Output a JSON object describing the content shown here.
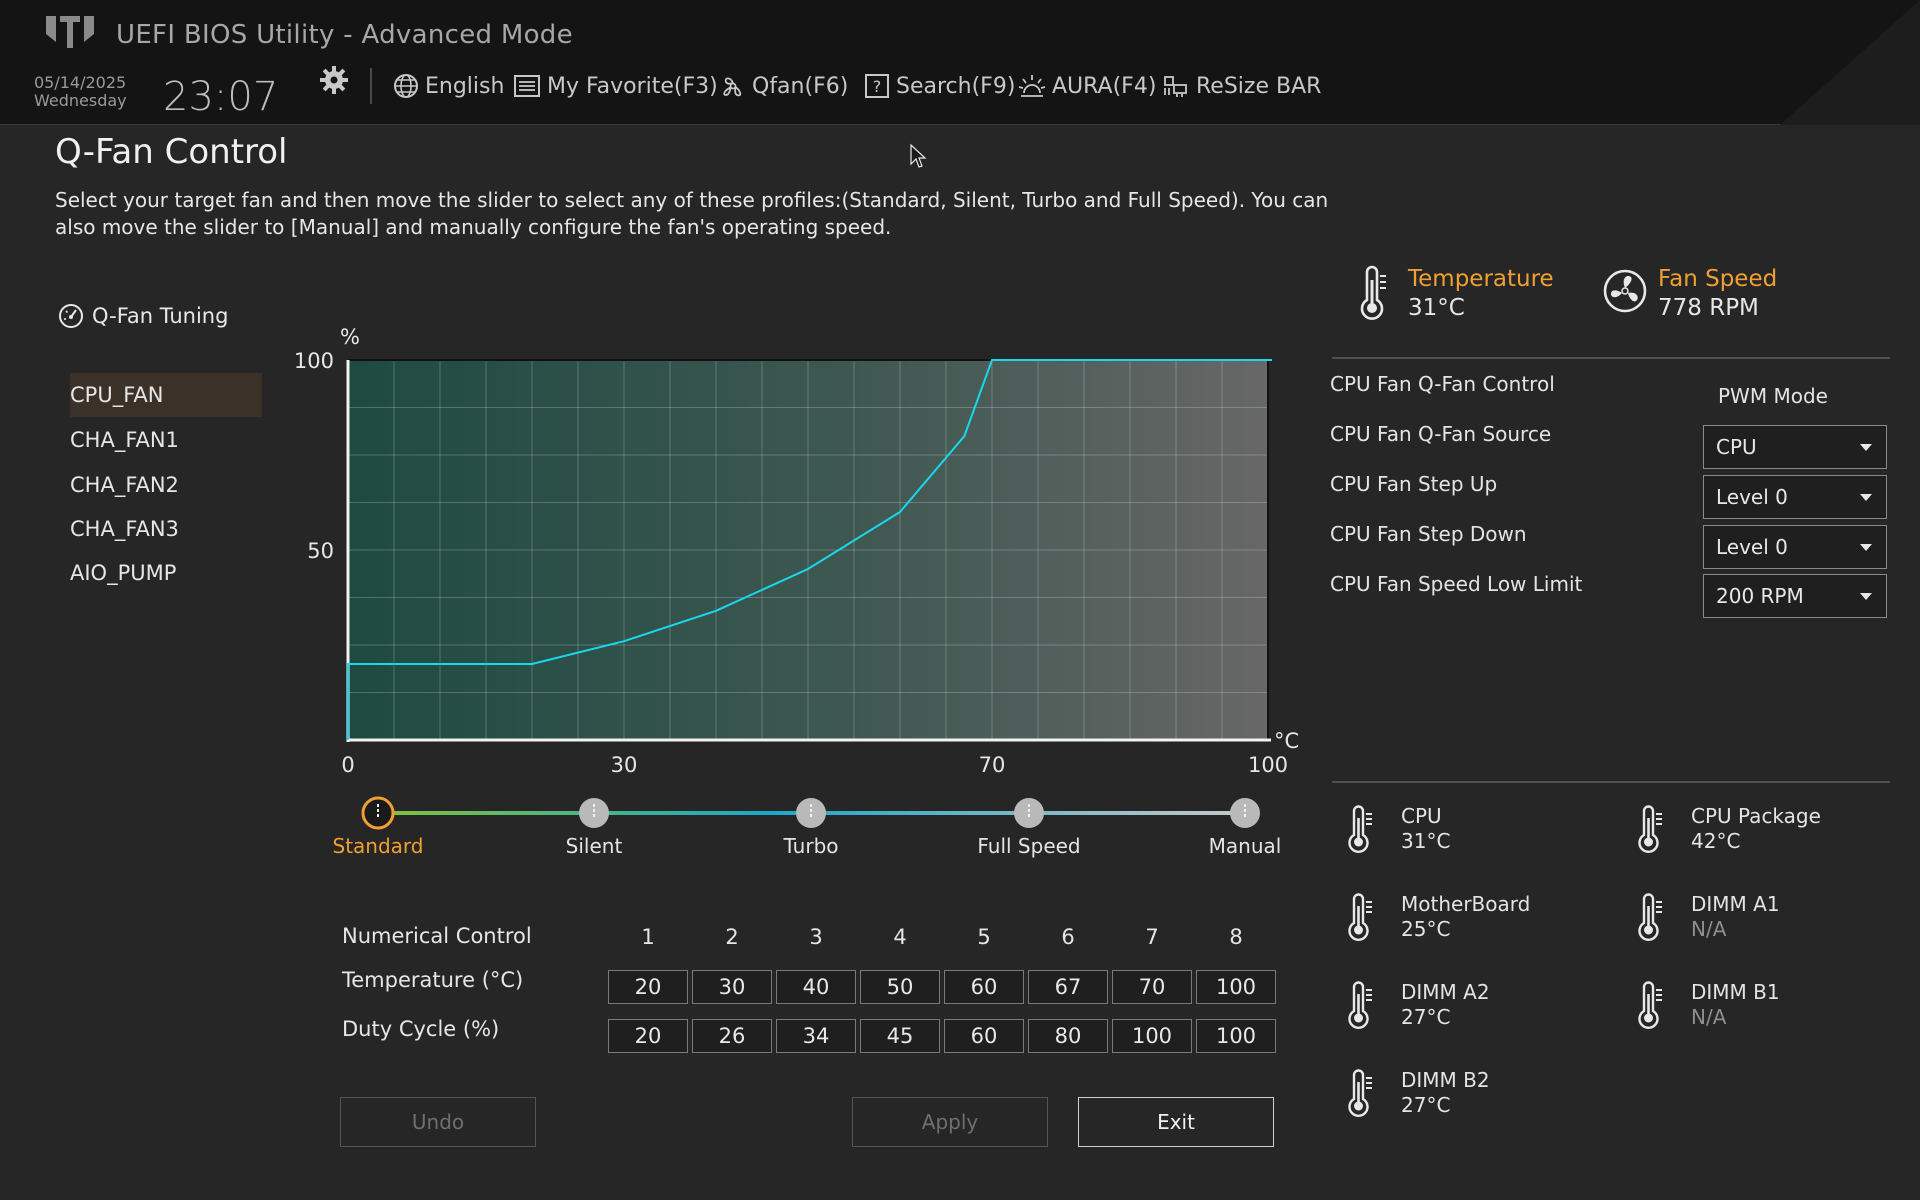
{
  "header": {
    "title": "UEFI BIOS Utility - Advanced Mode",
    "date": "05/14/2025",
    "weekday": "Wednesday",
    "time": "23:07",
    "nav": [
      {
        "label": "English",
        "icon": "globe-icon"
      },
      {
        "label": "My Favorite(F3)",
        "icon": "favorite-list-icon"
      },
      {
        "label": "Qfan(F6)",
        "icon": "fan-icon"
      },
      {
        "label": "Search(F9)",
        "icon": "search-help-icon"
      },
      {
        "label": "AURA(F4)",
        "icon": "aura-light-icon"
      },
      {
        "label": "ReSize BAR",
        "icon": "resize-bar-icon"
      }
    ]
  },
  "page": {
    "title": "Q-Fan Control",
    "description": "Select your target fan and then move the slider to select any of these profiles:(Standard, Silent, Turbo and Full Speed). You can also move the slider to [Manual] and manually configure the fan's operating speed."
  },
  "fan_panel": {
    "heading": "Q-Fan Tuning",
    "fans": [
      "CPU_FAN",
      "CHA_FAN1",
      "CHA_FAN2",
      "CHA_FAN3",
      "AIO_PUMP"
    ],
    "selected": "CPU_FAN"
  },
  "chart_data": {
    "type": "line",
    "ylabel": "%",
    "xlabel": "°C",
    "x_ticks": [
      "0",
      "30",
      "70",
      "100"
    ],
    "y_ticks": [
      "100",
      "50"
    ],
    "xlim": [
      0,
      100
    ],
    "ylim": [
      0,
      100
    ],
    "series": [
      {
        "x": [
          0,
          20,
          30,
          40,
          50,
          60,
          67,
          70,
          100
        ],
        "y": [
          20,
          20,
          26,
          34,
          45,
          60,
          80,
          100,
          100
        ]
      }
    ],
    "line_color": "#19d8ee"
  },
  "profiles": {
    "items": [
      "Standard",
      "Silent",
      "Turbo",
      "Full Speed",
      "Manual"
    ],
    "selected": "Standard"
  },
  "numerical": {
    "row_header": "Numerical Control",
    "columns": [
      "1",
      "2",
      "3",
      "4",
      "5",
      "6",
      "7",
      "8"
    ],
    "temp_label": "Temperature (°C)",
    "duty_label": "Duty Cycle (%)",
    "temperatures": [
      "20",
      "30",
      "40",
      "50",
      "60",
      "67",
      "70",
      "100"
    ],
    "duty_cycles": [
      "20",
      "26",
      "34",
      "45",
      "60",
      "80",
      "100",
      "100"
    ]
  },
  "buttons": {
    "undo": "Undo",
    "apply": "Apply",
    "exit": "Exit"
  },
  "status": {
    "temperature_label": "Temperature",
    "temperature_value": "31°C",
    "fan_speed_label": "Fan Speed",
    "fan_speed_value": "778 RPM"
  },
  "config": {
    "qfan_control_label": "CPU Fan Q-Fan Control",
    "qfan_control_value": "PWM Mode",
    "qfan_source_label": "CPU Fan Q-Fan Source",
    "qfan_source_value": "CPU",
    "step_up_label": "CPU Fan Step Up",
    "step_up_value": "Level 0",
    "step_down_label": "CPU Fan Step Down",
    "step_down_value": "Level 0",
    "low_limit_label": "CPU Fan Speed Low Limit",
    "low_limit_value": "200 RPM"
  },
  "sensors": [
    {
      "name": "CPU",
      "value": "31°C"
    },
    {
      "name": "CPU Package",
      "value": "42°C"
    },
    {
      "name": "MotherBoard",
      "value": "25°C"
    },
    {
      "name": "DIMM A1",
      "value": "N/A"
    },
    {
      "name": "DIMM A2",
      "value": "27°C"
    },
    {
      "name": "DIMM B1",
      "value": "N/A"
    },
    {
      "name": "DIMM B2",
      "value": "27°C"
    }
  ],
  "colors": {
    "accent": "#f0a033",
    "curve": "#19d8ee"
  }
}
